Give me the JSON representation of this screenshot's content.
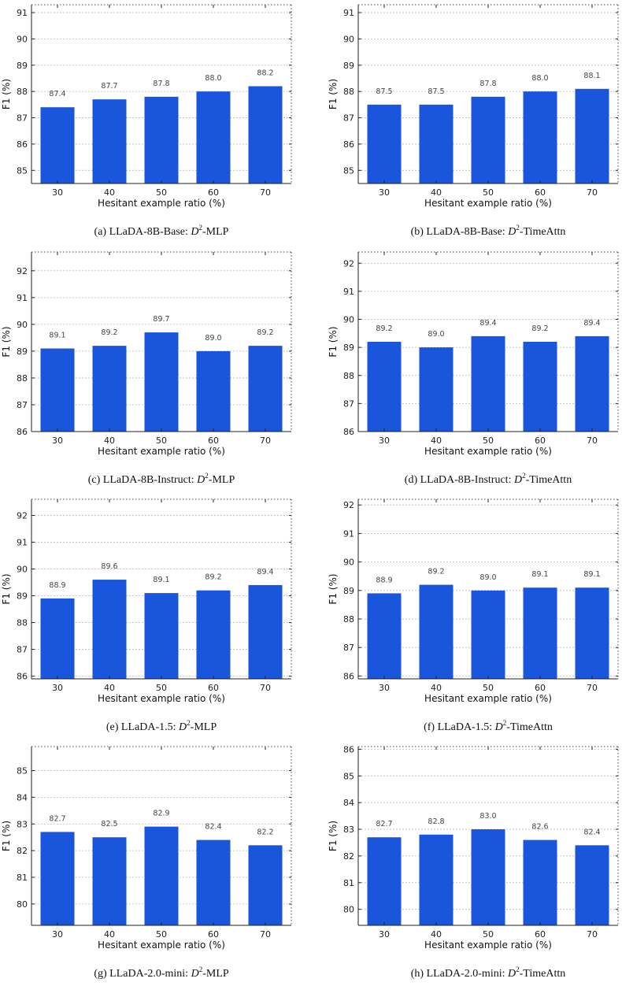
{
  "chart_data": [
    {
      "type": "bar",
      "categories": [
        "30",
        "40",
        "50",
        "60",
        "70"
      ],
      "values": [
        87.4,
        87.7,
        87.8,
        88.0,
        88.2
      ],
      "labels": [
        "87.4",
        "87.7",
        "87.8",
        "88.0",
        "88.2"
      ],
      "yticks": [
        "85",
        "86",
        "87",
        "88",
        "89",
        "90",
        "91"
      ],
      "ylim": [
        84.5,
        91.3
      ],
      "xlabel": "Hesitant example ratio (%)",
      "ylabel": "F1 (%)",
      "caption_prefix": "(a) LLaDA-8B-Base: ",
      "caption_math": "D",
      "caption_sup": "2",
      "caption_suffix": "-MLP",
      "grid": true
    },
    {
      "type": "bar",
      "categories": [
        "30",
        "40",
        "50",
        "60",
        "70"
      ],
      "values": [
        87.5,
        87.5,
        87.8,
        88.0,
        88.1
      ],
      "labels": [
        "87.5",
        "87.5",
        "87.8",
        "88.0",
        "88.1"
      ],
      "yticks": [
        "85",
        "86",
        "87",
        "88",
        "89",
        "90",
        "91"
      ],
      "ylim": [
        84.5,
        91.3
      ],
      "xlabel": "Hesitant example ratio (%)",
      "ylabel": "F1 (%)",
      "caption_prefix": "(b) LLaDA-8B-Base: ",
      "caption_math": "D",
      "caption_sup": "2",
      "caption_suffix": "-TimeAttn",
      "grid": true
    },
    {
      "type": "bar",
      "categories": [
        "30",
        "40",
        "50",
        "60",
        "70"
      ],
      "values": [
        89.1,
        89.2,
        89.7,
        89.0,
        89.2
      ],
      "labels": [
        "89.1",
        "89.2",
        "89.7",
        "89.0",
        "89.2"
      ],
      "yticks": [
        "86",
        "87",
        "88",
        "89",
        "90",
        "91",
        "92"
      ],
      "ylim": [
        86,
        92.7
      ],
      "xlabel": "Hesitant example ratio (%)",
      "ylabel": "F1 (%)",
      "caption_prefix": "(c) LLaDA-8B-Instruct: ",
      "caption_math": "D",
      "caption_sup": "2",
      "caption_suffix": "-MLP",
      "grid": true
    },
    {
      "type": "bar",
      "categories": [
        "30",
        "40",
        "50",
        "60",
        "70"
      ],
      "values": [
        89.2,
        89.0,
        89.4,
        89.2,
        89.4
      ],
      "labels": [
        "89.2",
        "89.0",
        "89.4",
        "89.2",
        "89.4"
      ],
      "yticks": [
        "86",
        "87",
        "88",
        "89",
        "90",
        "91",
        "92"
      ],
      "ylim": [
        86,
        92.4
      ],
      "xlabel": "Hesitant example ratio (%)",
      "ylabel": "F1 (%)",
      "caption_prefix": "(d) LLaDA-8B-Instruct: ",
      "caption_math": "D",
      "caption_sup": "2",
      "caption_suffix": "-TimeAttn",
      "grid": true
    },
    {
      "type": "bar",
      "categories": [
        "30",
        "40",
        "50",
        "60",
        "70"
      ],
      "values": [
        88.9,
        89.6,
        89.1,
        89.2,
        89.4
      ],
      "labels": [
        "88.9",
        "89.6",
        "89.1",
        "89.2",
        "89.4"
      ],
      "yticks": [
        "86",
        "87",
        "88",
        "89",
        "90",
        "91",
        "92"
      ],
      "ylim": [
        85.9,
        92.6
      ],
      "xlabel": "Hesitant example ratio (%)",
      "ylabel": "F1 (%)",
      "caption_prefix": "(e) LLaDA-1.5: ",
      "caption_math": "D",
      "caption_sup": "2",
      "caption_suffix": "-MLP",
      "grid": true
    },
    {
      "type": "bar",
      "categories": [
        "30",
        "40",
        "50",
        "60",
        "70"
      ],
      "values": [
        88.9,
        89.2,
        89.0,
        89.1,
        89.1
      ],
      "labels": [
        "88.9",
        "89.2",
        "89.0",
        "89.1",
        "89.1"
      ],
      "yticks": [
        "86",
        "87",
        "88",
        "89",
        "90",
        "91",
        "92"
      ],
      "ylim": [
        85.9,
        92.2
      ],
      "xlabel": "Hesitant example ratio (%)",
      "ylabel": "F1 (%)",
      "caption_prefix": "(f) LLaDA-1.5: ",
      "caption_math": "D",
      "caption_sup": "2",
      "caption_suffix": "-TimeAttn",
      "grid": true
    },
    {
      "type": "bar",
      "categories": [
        "30",
        "40",
        "50",
        "60",
        "70"
      ],
      "values": [
        82.7,
        82.5,
        82.9,
        82.4,
        82.2
      ],
      "labels": [
        "82.7",
        "82.5",
        "82.9",
        "82.4",
        "82.2"
      ],
      "yticks": [
        "80",
        "81",
        "82",
        "83",
        "84",
        "85"
      ],
      "ylim": [
        79.2,
        85.9
      ],
      "xlabel": "Hesitant example ratio (%)",
      "ylabel": "F1 (%)",
      "caption_prefix": "(g) LLaDA-2.0-mini: ",
      "caption_math": "D",
      "caption_sup": "2",
      "caption_suffix": "-MLP",
      "grid": true
    },
    {
      "type": "bar",
      "categories": [
        "30",
        "40",
        "50",
        "60",
        "70"
      ],
      "values": [
        82.7,
        82.8,
        83.0,
        82.6,
        82.4
      ],
      "labels": [
        "82.7",
        "82.8",
        "83.0",
        "82.6",
        "82.4"
      ],
      "yticks": [
        "80",
        "81",
        "82",
        "83",
        "84",
        "85",
        "86"
      ],
      "ylim": [
        79.4,
        86.1
      ],
      "xlabel": "Hesitant example ratio (%)",
      "ylabel": "F1 (%)",
      "caption_prefix": "(h) LLaDA-2.0-mini: ",
      "caption_math": "D",
      "caption_sup": "2",
      "caption_suffix": "-TimeAttn",
      "grid": true
    }
  ],
  "style": {
    "bar_color": "#1a56db",
    "grid_color": "#b8b8b8"
  }
}
